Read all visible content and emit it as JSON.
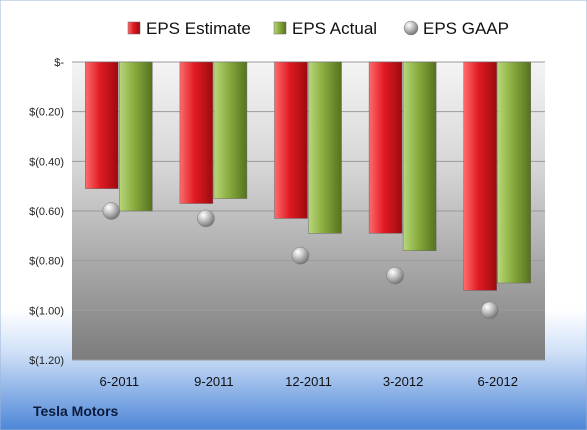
{
  "company": "Tesla Motors",
  "chart_data": {
    "type": "bar",
    "categories": [
      "6-2011",
      "9-2011",
      "12-2011",
      "3-2012",
      "6-2012"
    ],
    "series": [
      {
        "name": "EPS Estimate",
        "values": [
          -0.51,
          -0.57,
          -0.63,
          -0.69,
          -0.92
        ],
        "color": "#d9141a"
      },
      {
        "name": "EPS Actual",
        "values": [
          -0.6,
          -0.55,
          -0.69,
          -0.76,
          -0.89
        ],
        "color": "#84a83a"
      },
      {
        "name": "EPS GAAP",
        "values": [
          -0.6,
          -0.63,
          -0.78,
          -0.86,
          -1.0
        ],
        "color": "#a8a8a8",
        "marker": "sphere"
      }
    ],
    "ylim": [
      -1.2,
      0
    ],
    "yticks": [
      0,
      -0.2,
      -0.4,
      -0.6,
      -0.8,
      -1.0,
      -1.2
    ],
    "ytick_labels": [
      "$-",
      "$(0.20)",
      "$(0.40)",
      "$(0.60)",
      "$(0.80)",
      "$(1.00)",
      "$(1.20)"
    ],
    "legend_position": "top",
    "grid": true
  }
}
